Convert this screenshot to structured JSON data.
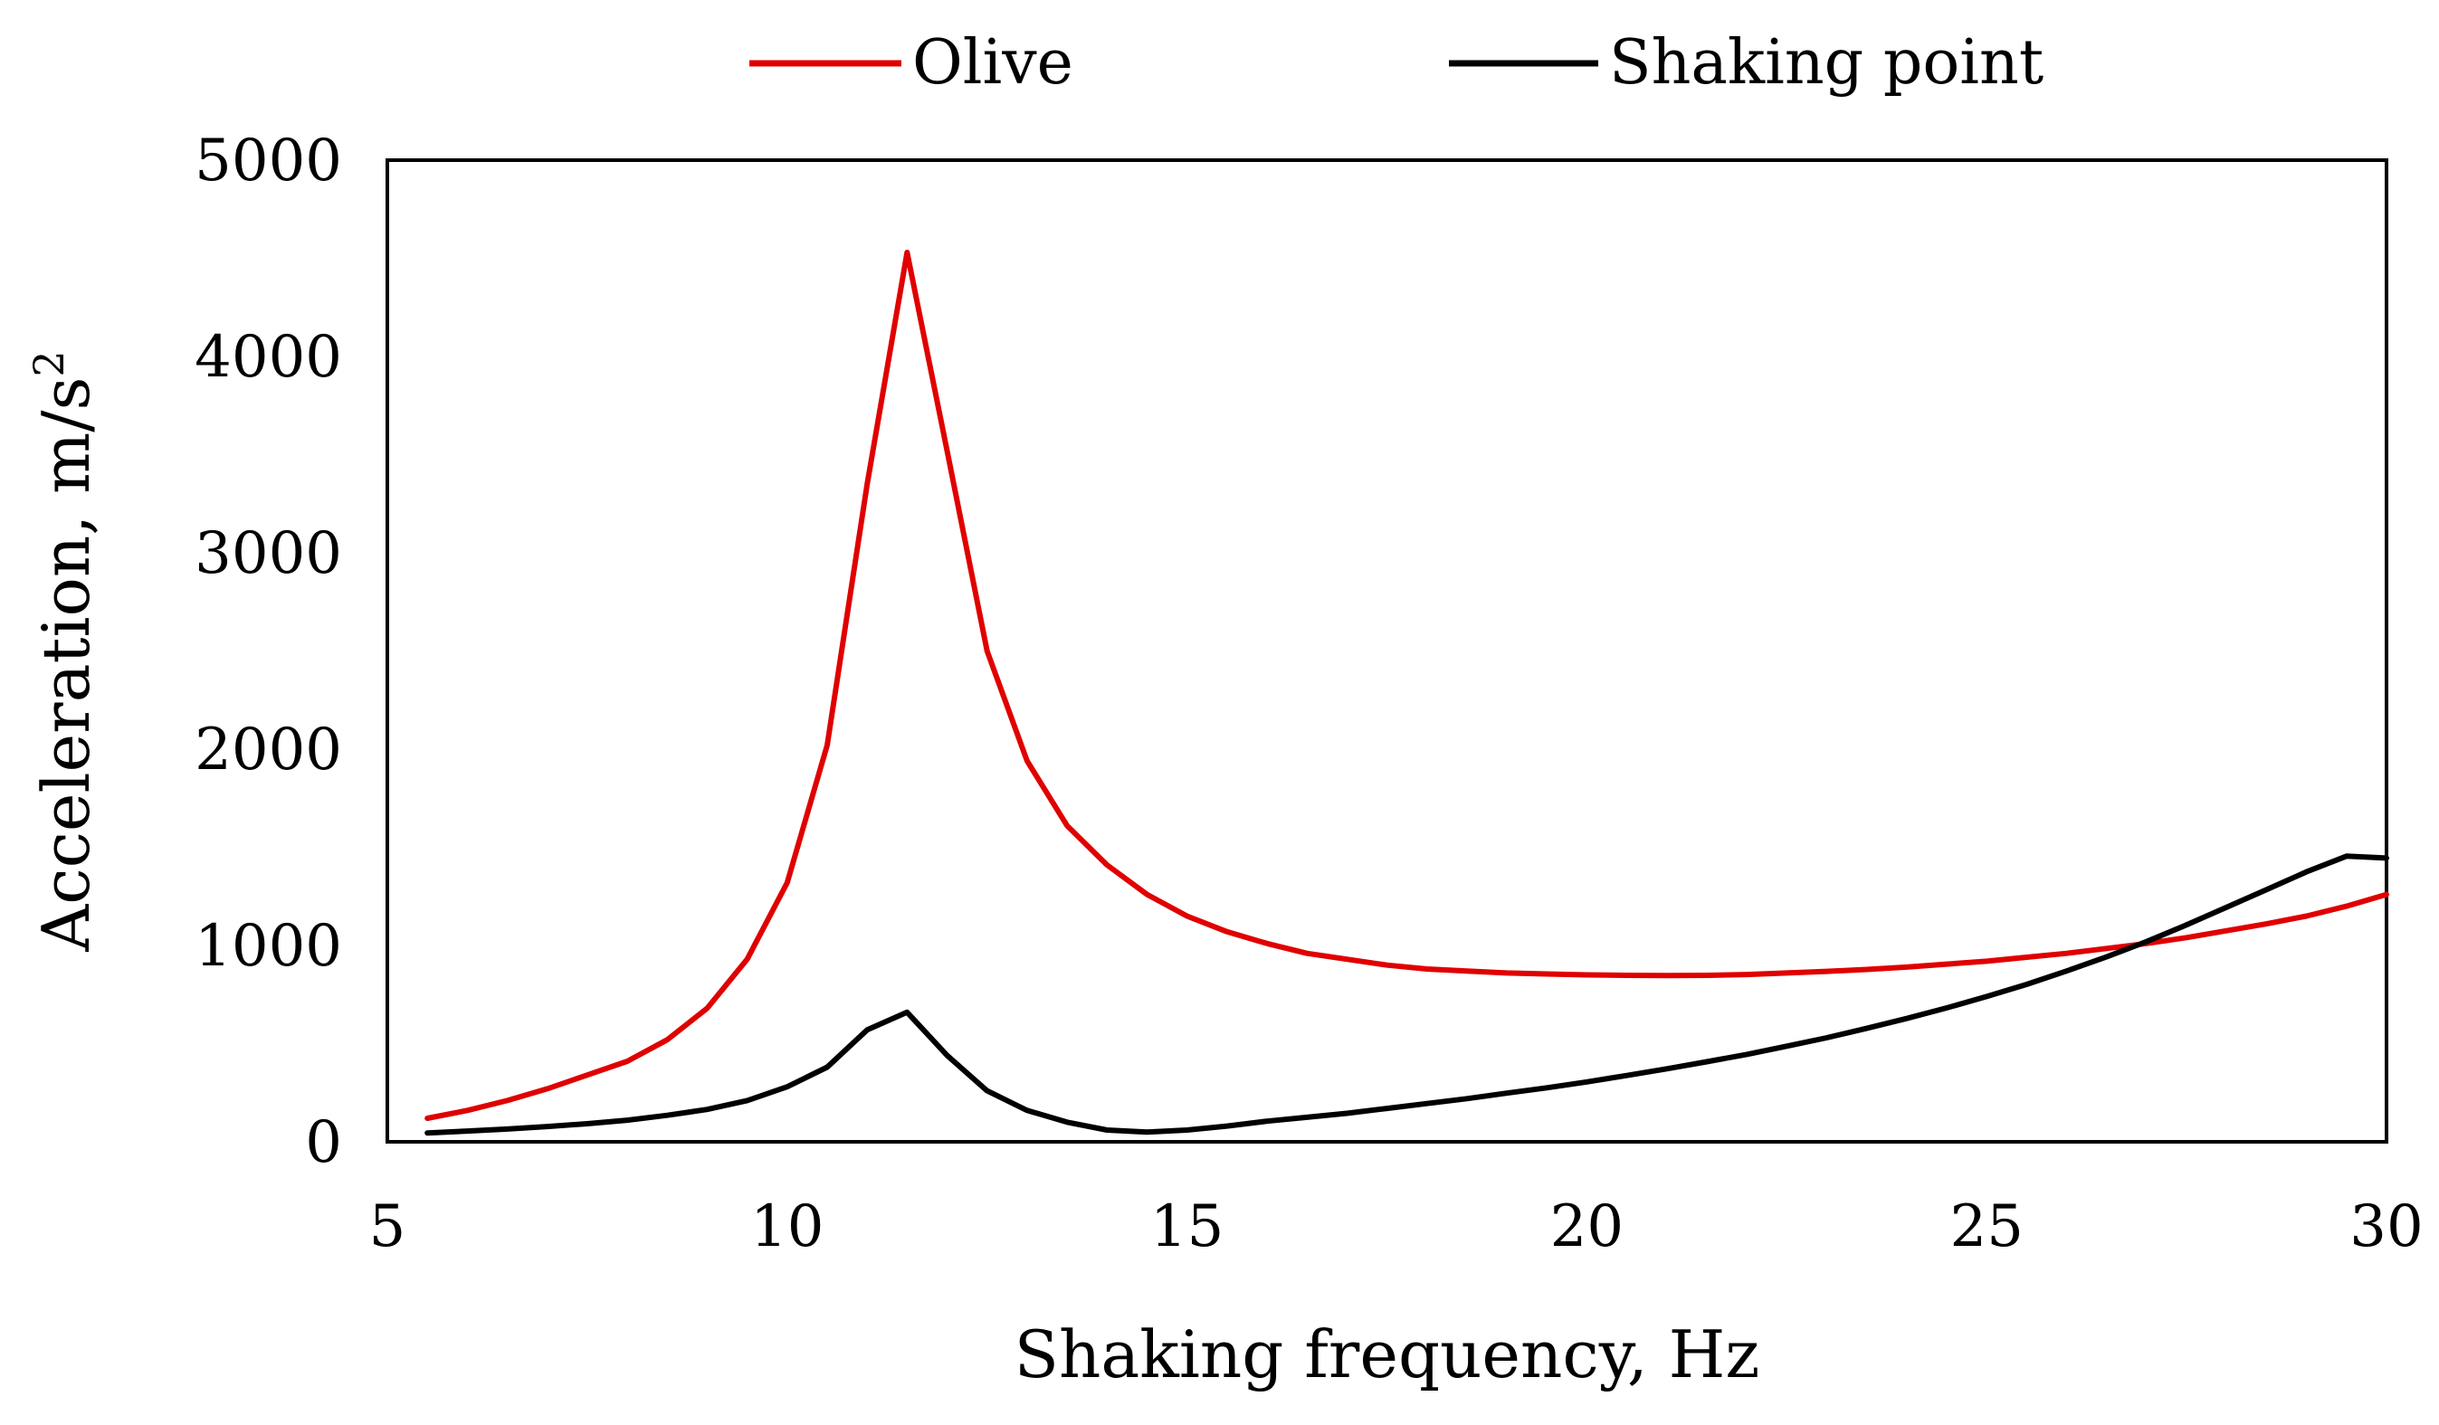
{
  "chart_data": {
    "type": "line",
    "title": "",
    "xlabel": "Shaking frequency, Hz",
    "ylabel_text": "Acceleration, m/s",
    "ylabel_sup": "2",
    "xlim": [
      5,
      30
    ],
    "ylim": [
      0,
      5000
    ],
    "x_ticks": [
      "5",
      "10",
      "15",
      "20",
      "25",
      "30"
    ],
    "y_ticks": [
      "0",
      "1000",
      "2000",
      "3000",
      "4000",
      "5000"
    ],
    "grid": false,
    "legend_position": "top-center",
    "series": [
      {
        "name": "Olive",
        "color": "#e00000",
        "x": [
          5.5,
          6,
          6.5,
          7,
          7.5,
          8,
          8.5,
          9,
          9.5,
          10,
          10.5,
          11,
          11.5,
          12,
          12.5,
          13,
          13.5,
          14,
          14.5,
          15,
          15.5,
          16,
          16.5,
          17,
          17.5,
          18,
          18.5,
          19,
          19.5,
          20,
          20.5,
          21,
          21.5,
          22,
          22.5,
          23,
          23.5,
          24,
          24.5,
          25,
          25.5,
          26,
          26.5,
          27,
          27.5,
          28,
          28.5,
          29,
          29.5,
          30
        ],
        "values": [
          120,
          160,
          210,
          270,
          340,
          410,
          520,
          680,
          930,
          1320,
          2020,
          3350,
          4530,
          3520,
          2500,
          1940,
          1610,
          1410,
          1260,
          1150,
          1070,
          1010,
          960,
          930,
          900,
          880,
          870,
          860,
          855,
          850,
          848,
          847,
          848,
          852,
          860,
          868,
          878,
          890,
          905,
          920,
          940,
          960,
          985,
          1010,
          1040,
          1075,
          1110,
          1150,
          1200,
          1260
        ]
      },
      {
        "name": "Shaking point",
        "color": "#000000",
        "x": [
          5.5,
          6,
          6.5,
          7,
          7.5,
          8,
          8.5,
          9,
          9.5,
          10,
          10.5,
          11,
          11.5,
          12,
          12.5,
          13,
          13.5,
          14,
          14.5,
          15,
          15.5,
          16,
          16.5,
          17,
          17.5,
          18,
          18.5,
          19,
          19.5,
          20,
          20.5,
          21,
          21.5,
          22,
          22.5,
          23,
          23.5,
          24,
          24.5,
          25,
          25.5,
          26,
          26.5,
          27,
          27.5,
          28,
          28.5,
          29,
          29.5,
          30
        ],
        "values": [
          45,
          55,
          65,
          78,
          92,
          110,
          135,
          165,
          210,
          280,
          380,
          570,
          660,
          440,
          260,
          160,
          100,
          60,
          50,
          60,
          80,
          105,
          125,
          145,
          170,
          195,
          220,
          248,
          275,
          305,
          338,
          372,
          408,
          445,
          487,
          530,
          578,
          628,
          682,
          740,
          802,
          870,
          942,
          1020,
          1105,
          1195,
          1285,
          1375,
          1455,
          1445
        ]
      }
    ]
  }
}
